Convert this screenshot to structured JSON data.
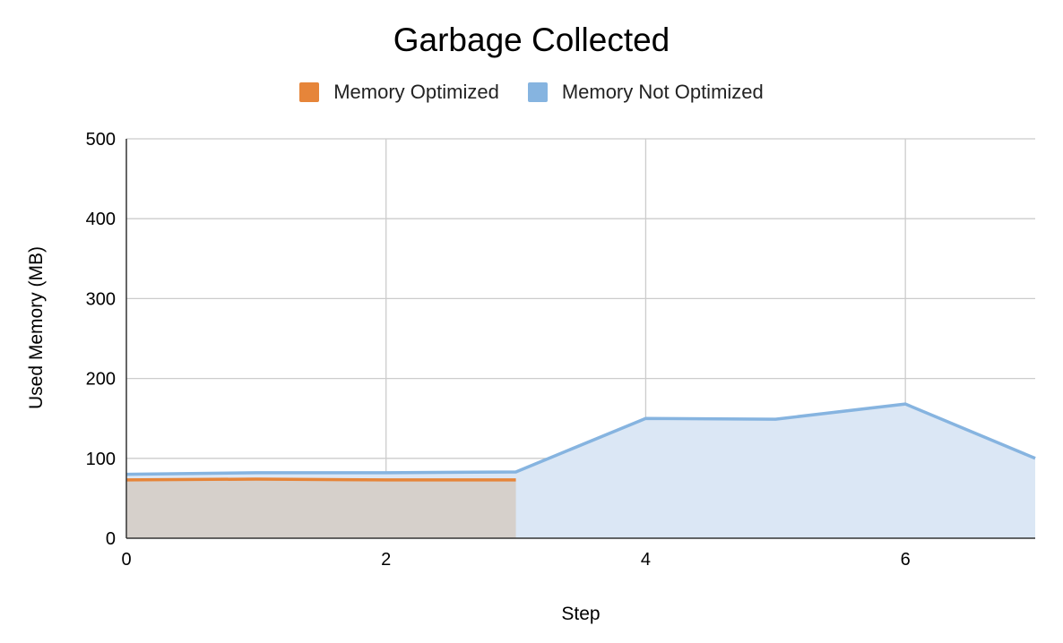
{
  "chart_data": {
    "type": "area",
    "title": "Garbage Collected",
    "xlabel": "Step",
    "ylabel": "Used Memory (MB)",
    "xlim": [
      0,
      7
    ],
    "ylim": [
      0,
      500
    ],
    "x_ticks": [
      0,
      2,
      4,
      6
    ],
    "y_ticks": [
      0,
      100,
      200,
      300,
      400,
      500
    ],
    "grid": true,
    "legend_position": "top",
    "series": [
      {
        "name": "Memory Optimized",
        "color": "#e6853a",
        "fill": "#d6d0cb",
        "x": [
          0,
          1,
          2,
          3
        ],
        "values": [
          73,
          74,
          73,
          73
        ]
      },
      {
        "name": "Memory Not Optimized",
        "color": "#86b4e0",
        "fill": "#dbe7f5",
        "x": [
          0,
          1,
          2,
          3,
          4,
          5,
          6,
          7
        ],
        "values": [
          80,
          82,
          82,
          83,
          150,
          149,
          168,
          100
        ]
      }
    ]
  }
}
